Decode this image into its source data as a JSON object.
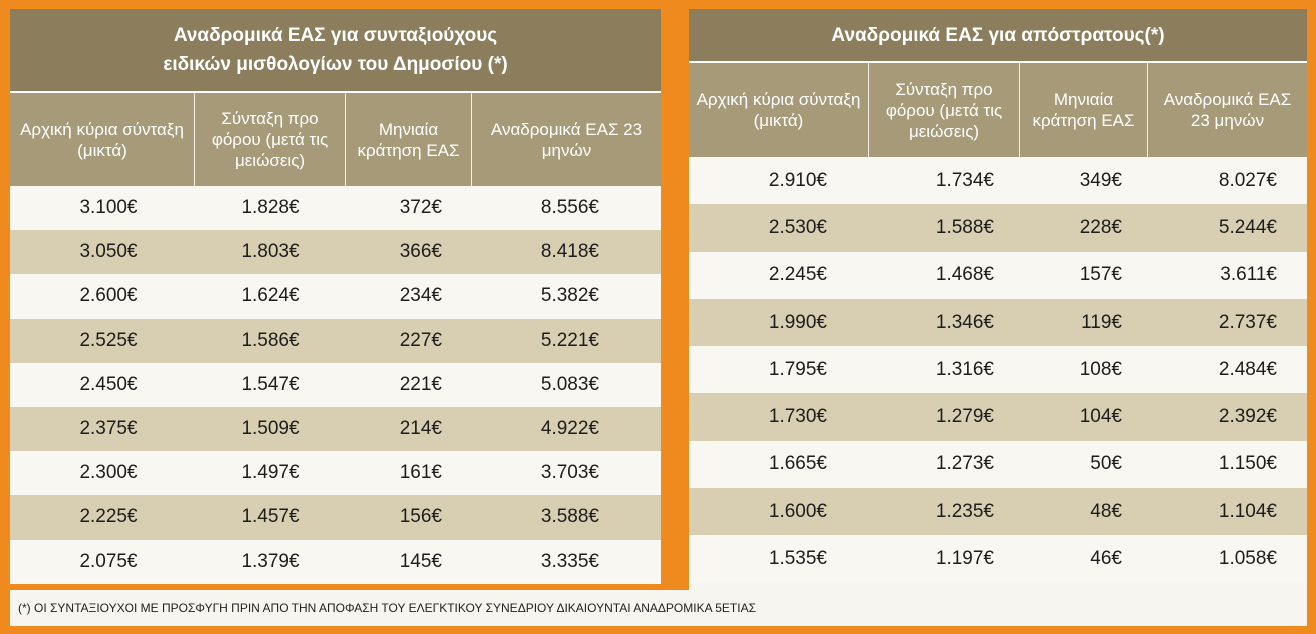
{
  "left_table": {
    "title_line1": "Αναδρομικά ΕΑΣ για συνταξιούχους",
    "title_line2": "ειδικών μισθολογίων του Δημοσίου (*)",
    "headers": [
      "Αρχική κύρια σύνταξη (μικτά)",
      "Σύνταξη προ φόρου (μετά τις μειώσεις)",
      "Μηνιαία κράτηση ΕΑΣ",
      "Αναδρομικά ΕΑΣ 23 μηνών"
    ],
    "rows": [
      [
        "3.100€",
        "1.828€",
        "372€",
        "8.556€"
      ],
      [
        "3.050€",
        "1.803€",
        "366€",
        "8.418€"
      ],
      [
        "2.600€",
        "1.624€",
        "234€",
        "5.382€"
      ],
      [
        "2.525€",
        "1.586€",
        "227€",
        "5.221€"
      ],
      [
        "2.450€",
        "1.547€",
        "221€",
        "5.083€"
      ],
      [
        "2.375€",
        "1.509€",
        "214€",
        "4.922€"
      ],
      [
        "2.300€",
        "1.497€",
        "161€",
        "3.703€"
      ],
      [
        "2.225€",
        "1.457€",
        "156€",
        "3.588€"
      ],
      [
        "2.075€",
        "1.379€",
        "145€",
        "3.335€"
      ]
    ]
  },
  "right_table": {
    "title": "Αναδρομικά ΕΑΣ για απόστρατους(*)",
    "headers": [
      "Αρχική κύρια σύνταξη (μικτά)",
      "Σύνταξη προ φόρου (μετά τις μειώσεις)",
      "Μηνιαία κράτηση ΕΑΣ",
      "Αναδρομικά ΕΑΣ 23 μηνών"
    ],
    "rows": [
      [
        "2.910€",
        "1.734€",
        "349€",
        "8.027€"
      ],
      [
        "2.530€",
        "1.588€",
        "228€",
        "5.244€"
      ],
      [
        "2.245€",
        "1.468€",
        "157€",
        "3.611€"
      ],
      [
        "1.990€",
        "1.346€",
        "119€",
        "2.737€"
      ],
      [
        "1.795€",
        "1.316€",
        "108€",
        "2.484€"
      ],
      [
        "1.730€",
        "1.279€",
        "104€",
        "2.392€"
      ],
      [
        "1.665€",
        "1.273€",
        "50€",
        "1.150€"
      ],
      [
        "1.600€",
        "1.235€",
        "48€",
        "1.104€"
      ],
      [
        "1.535€",
        "1.197€",
        "46€",
        "1.058€"
      ]
    ]
  },
  "footnote": "(*) ΟΙ ΣΥΝΤΑΞΙΟΥΧΟΙ ΜΕ ΠΡΟΣΦΥΓΗ ΠΡΙΝ ΑΠΟ ΤΗΝ ΑΠΟΦΑΣΗ ΤΟΥ ΕΛΕΓΚΤΙΚΟΥ ΣΥΝΕΔΡΙΟΥ ΔΙΚΑΙΟΥΝΤΑΙ ΑΝΑΔΡΟΜΙΚΑ 5ΕΤΙΑΣ",
  "colors": {
    "frame": "#ee8a1e",
    "title_bg": "#8c7e5d",
    "header_bg": "#a69a78",
    "row_even": "#d8ceb1",
    "row_odd": "#f8f7f2"
  }
}
